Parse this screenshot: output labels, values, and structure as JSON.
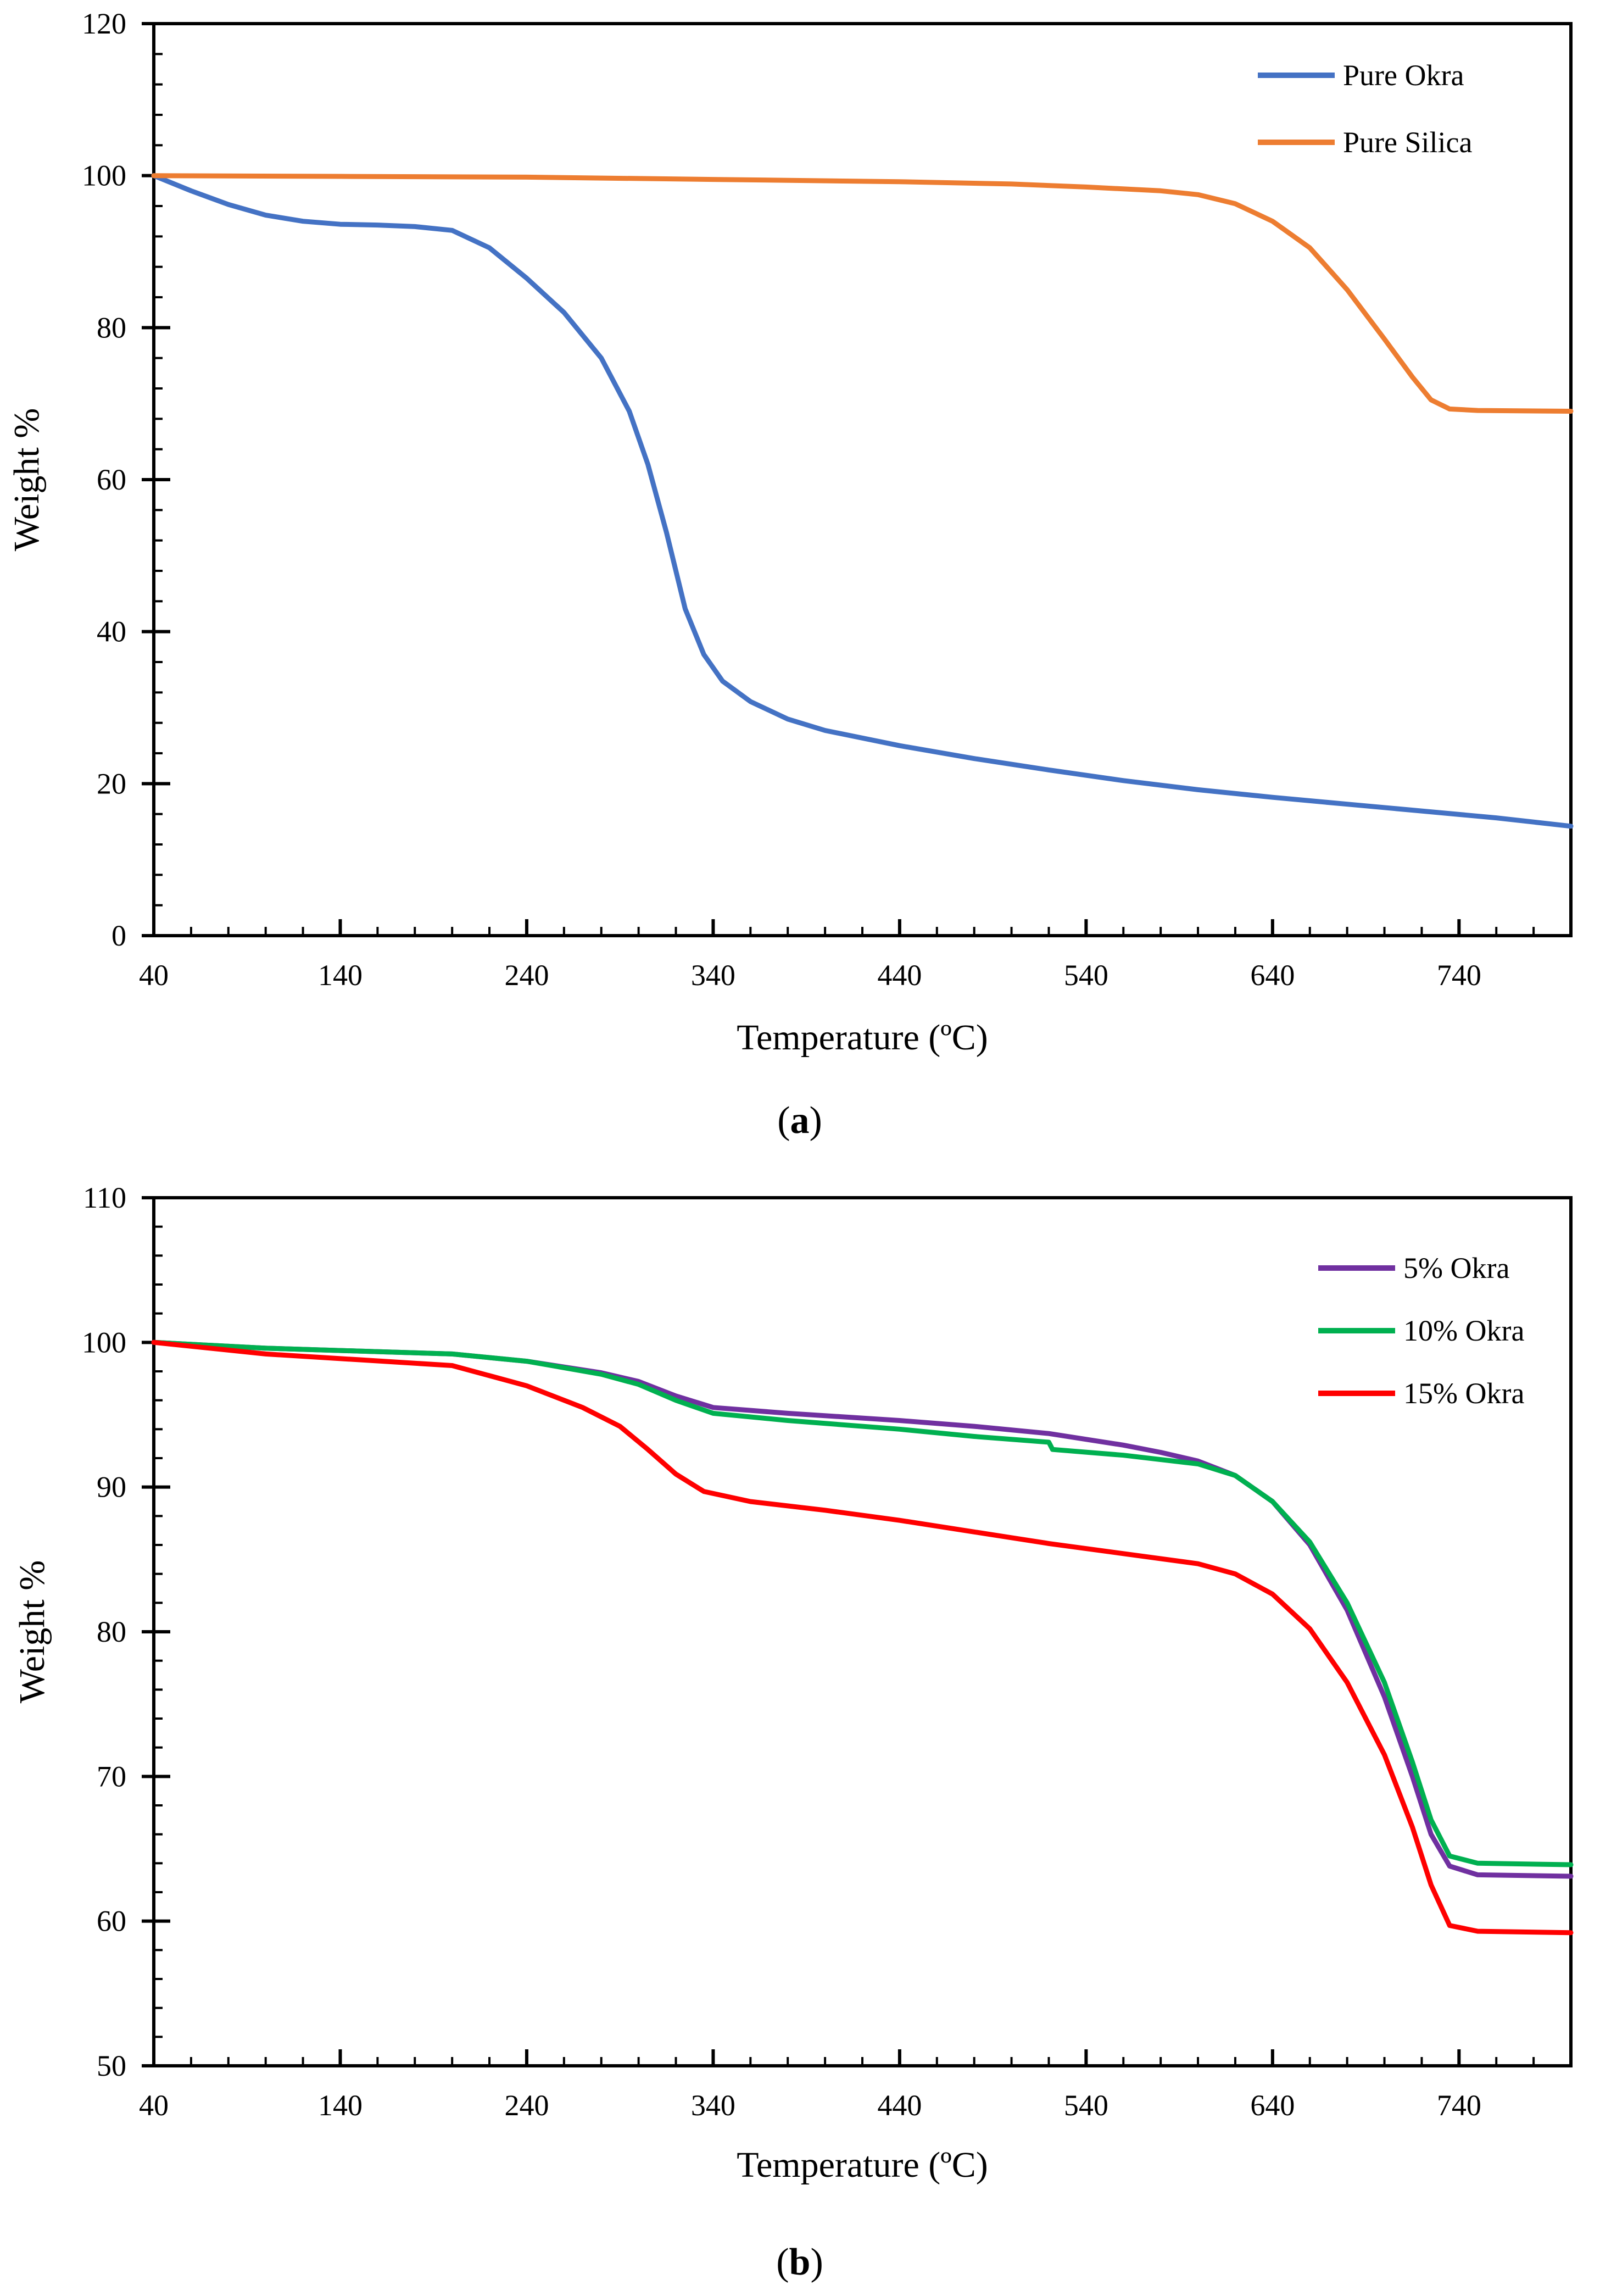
{
  "chart_data": [
    {
      "id": "a",
      "type": "line",
      "caption_open": "(",
      "caption_letter": "a",
      "caption_close": ")",
      "xlabel": "Temperature (ºC)",
      "ylabel": "Weight %",
      "xlim": [
        40,
        800
      ],
      "ylim": [
        0,
        120
      ],
      "xticks": [
        40,
        140,
        240,
        340,
        440,
        540,
        640,
        740
      ],
      "yticks": [
        0,
        20,
        40,
        60,
        80,
        100,
        120
      ],
      "x_minor_step": 20,
      "y_minor_step": 4,
      "legend_position": "top-right",
      "series": [
        {
          "name": "Pure Okra",
          "color": "#4472C4",
          "points": [
            [
              40,
              100
            ],
            [
              60,
              98
            ],
            [
              80,
              96.2
            ],
            [
              100,
              94.8
            ],
            [
              120,
              94
            ],
            [
              140,
              93.6
            ],
            [
              160,
              93.5
            ],
            [
              180,
              93.3
            ],
            [
              200,
              92.8
            ],
            [
              220,
              90.5
            ],
            [
              240,
              86.5
            ],
            [
              260,
              82
            ],
            [
              280,
              76
            ],
            [
              295,
              69
            ],
            [
              305,
              62
            ],
            [
              315,
              53
            ],
            [
              325,
              43
            ],
            [
              335,
              37
            ],
            [
              345,
              33.5
            ],
            [
              360,
              30.8
            ],
            [
              380,
              28.5
            ],
            [
              400,
              27
            ],
            [
              440,
              25
            ],
            [
              480,
              23.3
            ],
            [
              520,
              21.8
            ],
            [
              560,
              20.4
            ],
            [
              600,
              19.2
            ],
            [
              640,
              18.2
            ],
            [
              680,
              17.3
            ],
            [
              720,
              16.4
            ],
            [
              760,
              15.5
            ],
            [
              800,
              14.4
            ]
          ]
        },
        {
          "name": "Pure Silica",
          "color": "#ED7D31",
          "points": [
            [
              40,
              100
            ],
            [
              140,
              99.9
            ],
            [
              240,
              99.8
            ],
            [
              340,
              99.5
            ],
            [
              440,
              99.2
            ],
            [
              500,
              98.9
            ],
            [
              540,
              98.5
            ],
            [
              580,
              98
            ],
            [
              600,
              97.5
            ],
            [
              620,
              96.3
            ],
            [
              640,
              94
            ],
            [
              660,
              90.5
            ],
            [
              680,
              85
            ],
            [
              700,
              78.5
            ],
            [
              715,
              73.5
            ],
            [
              725,
              70.5
            ],
            [
              735,
              69.3
            ],
            [
              750,
              69.1
            ],
            [
              800,
              69
            ]
          ]
        }
      ]
    },
    {
      "id": "b",
      "type": "line",
      "caption_open": "(",
      "caption_letter": "b",
      "caption_close": ")",
      "xlabel": "Temperature (ºC)",
      "ylabel": "Weight %",
      "xlim": [
        40,
        800
      ],
      "ylim": [
        50,
        110
      ],
      "xticks": [
        40,
        140,
        240,
        340,
        440,
        540,
        640,
        740
      ],
      "yticks": [
        50,
        60,
        70,
        80,
        90,
        100,
        110
      ],
      "x_minor_step": 20,
      "y_minor_step": 2,
      "legend_position": "top-right",
      "series": [
        {
          "name": "5% Okra",
          "color": "#7030A0",
          "points": [
            [
              40,
              100
            ],
            [
              100,
              99.6
            ],
            [
              150,
              99.4
            ],
            [
              200,
              99.2
            ],
            [
              240,
              98.7
            ],
            [
              280,
              97.9
            ],
            [
              300,
              97.3
            ],
            [
              320,
              96.3
            ],
            [
              340,
              95.5
            ],
            [
              380,
              95.1
            ],
            [
              440,
              94.6
            ],
            [
              480,
              94.2
            ],
            [
              520,
              93.7
            ],
            [
              560,
              92.9
            ],
            [
              580,
              92.4
            ],
            [
              600,
              91.8
            ],
            [
              620,
              90.8
            ],
            [
              640,
              89
            ],
            [
              660,
              86
            ],
            [
              680,
              81.5
            ],
            [
              700,
              75.5
            ],
            [
              715,
              70
            ],
            [
              725,
              66
            ],
            [
              735,
              63.8
            ],
            [
              750,
              63.2
            ],
            [
              800,
              63.1
            ]
          ]
        },
        {
          "name": "10% Okra",
          "color": "#00B050",
          "points": [
            [
              40,
              100
            ],
            [
              100,
              99.6
            ],
            [
              150,
              99.4
            ],
            [
              200,
              99.2
            ],
            [
              240,
              98.7
            ],
            [
              280,
              97.8
            ],
            [
              300,
              97.1
            ],
            [
              320,
              96
            ],
            [
              340,
              95.1
            ],
            [
              380,
              94.6
            ],
            [
              440,
              94
            ],
            [
              480,
              93.5
            ],
            [
              520,
              93.1
            ],
            [
              522,
              92.6
            ],
            [
              560,
              92.2
            ],
            [
              600,
              91.6
            ],
            [
              620,
              90.8
            ],
            [
              640,
              89
            ],
            [
              660,
              86.2
            ],
            [
              680,
              82
            ],
            [
              700,
              76.5
            ],
            [
              715,
              71
            ],
            [
              725,
              67
            ],
            [
              735,
              64.5
            ],
            [
              750,
              64
            ],
            [
              800,
              63.9
            ]
          ]
        },
        {
          "name": "15% Okra",
          "color": "#FF0000",
          "points": [
            [
              40,
              100
            ],
            [
              100,
              99.2
            ],
            [
              150,
              98.8
            ],
            [
              200,
              98.4
            ],
            [
              240,
              97
            ],
            [
              270,
              95.5
            ],
            [
              290,
              94.2
            ],
            [
              305,
              92.6
            ],
            [
              320,
              90.9
            ],
            [
              335,
              89.7
            ],
            [
              360,
              89
            ],
            [
              400,
              88.4
            ],
            [
              440,
              87.7
            ],
            [
              480,
              86.9
            ],
            [
              520,
              86.1
            ],
            [
              560,
              85.4
            ],
            [
              600,
              84.7
            ],
            [
              620,
              84
            ],
            [
              640,
              82.6
            ],
            [
              660,
              80.2
            ],
            [
              680,
              76.5
            ],
            [
              700,
              71.5
            ],
            [
              715,
              66.5
            ],
            [
              725,
              62.5
            ],
            [
              735,
              59.7
            ],
            [
              750,
              59.3
            ],
            [
              800,
              59.2
            ]
          ]
        }
      ]
    }
  ]
}
